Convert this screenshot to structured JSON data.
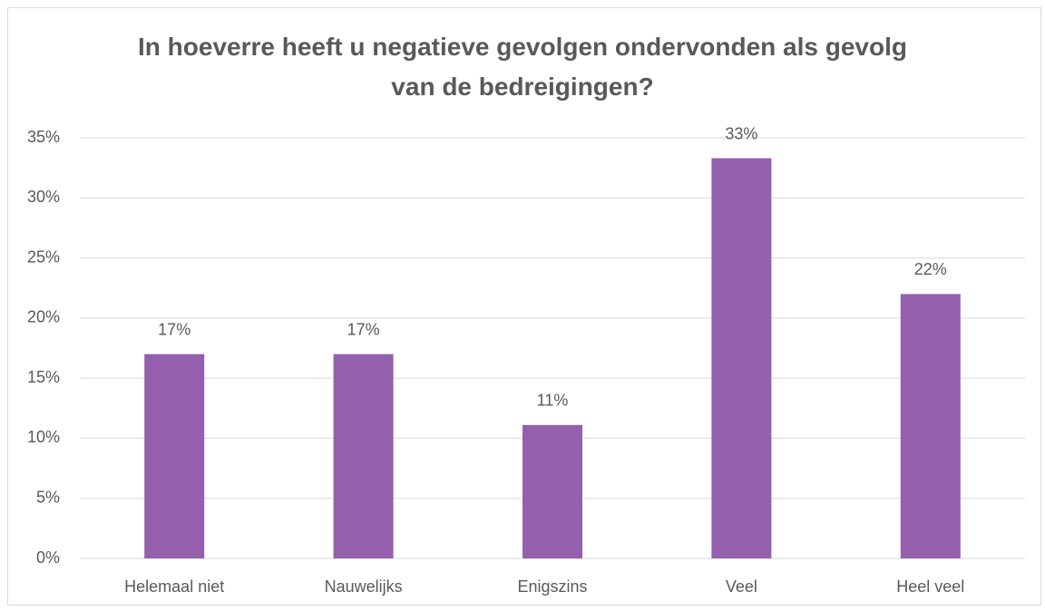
{
  "chart_data": {
    "type": "bar",
    "title": "In hoeverre heeft u negatieve gevolgen ondervonden als gevolg van de bedreigingen?",
    "categories": [
      "Helemaal niet",
      "Nauwelijks",
      "Enigszins",
      "Veel",
      "Heel veel"
    ],
    "values": [
      17,
      17,
      11.1,
      33.3,
      22
    ],
    "value_labels": [
      "17%",
      "17%",
      "11%",
      "33%",
      "22%"
    ],
    "color": "#945fac",
    "ylim": [
      0,
      35
    ],
    "yticks": [
      {
        "value": 0,
        "label": "0%"
      },
      {
        "value": 5,
        "label": "5%"
      },
      {
        "value": 10,
        "label": "10%"
      },
      {
        "value": 15,
        "label": "15%"
      },
      {
        "value": 20,
        "label": "20%"
      },
      {
        "value": 25,
        "label": "25%"
      },
      {
        "value": 30,
        "label": "30%"
      },
      {
        "value": 35,
        "label": "35%"
      }
    ],
    "grid": true
  }
}
